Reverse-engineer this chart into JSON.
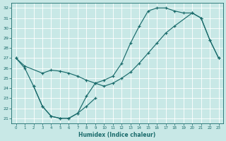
{
  "xlabel": "Humidex (Indice chaleur)",
  "bg_color": "#c8e8e6",
  "line_color": "#1a6b6b",
  "grid_color": "#ffffff",
  "xlim": [
    -0.5,
    23.5
  ],
  "ylim": [
    20.5,
    32.5
  ],
  "yticks": [
    21,
    22,
    23,
    24,
    25,
    26,
    27,
    28,
    29,
    30,
    31,
    32
  ],
  "xticks": [
    0,
    1,
    2,
    3,
    4,
    5,
    6,
    7,
    8,
    9,
    10,
    11,
    12,
    13,
    14,
    15,
    16,
    17,
    18,
    19,
    20,
    21,
    22,
    23
  ],
  "line1_x": [
    0,
    1,
    2,
    3,
    4,
    5,
    6,
    7,
    8,
    9,
    10,
    11,
    12,
    13,
    14,
    15,
    16,
    17,
    18,
    19,
    20,
    21,
    22,
    23
  ],
  "line1_y": [
    27.0,
    26.0,
    24.2,
    22.2,
    21.2,
    21.0,
    21.0,
    21.5,
    23.2,
    24.5,
    24.8,
    25.2,
    26.5,
    28.5,
    30.2,
    31.7,
    32.0,
    32.0,
    31.7,
    31.5,
    31.5,
    31.0,
    28.8,
    27.0
  ],
  "line2_x": [
    0,
    1,
    3,
    4,
    5,
    6,
    7,
    8,
    9,
    10,
    11,
    12,
    13,
    14,
    15,
    16,
    17,
    18,
    20,
    21,
    22,
    23
  ],
  "line2_y": [
    27.0,
    26.2,
    25.5,
    25.8,
    25.7,
    25.5,
    25.2,
    24.8,
    24.5,
    24.2,
    24.5,
    25.0,
    25.6,
    26.5,
    27.5,
    28.5,
    29.5,
    30.2,
    31.5,
    31.0,
    28.8,
    27.0
  ],
  "line3_x": [
    2,
    3,
    4,
    5,
    6,
    7,
    8,
    9
  ],
  "line3_y": [
    24.2,
    22.2,
    21.2,
    21.0,
    21.0,
    21.5,
    22.2,
    23.0
  ]
}
